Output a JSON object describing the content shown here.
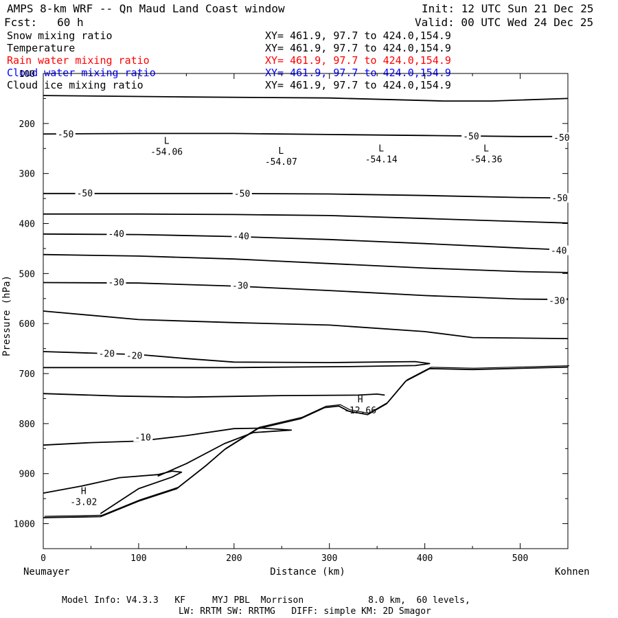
{
  "header": {
    "title": "AMPS 8-km WRF -- Qn Maud Land Coast window",
    "init": "Init: 12 UTC Sun 21 Dec 25",
    "fcst": "Fcst:   60 h",
    "valid": "Valid: 00 UTC Wed 24 Dec 25"
  },
  "fields": [
    {
      "name": "Snow mixing ratio",
      "xy": "XY= 461.9, 97.7 to 424.0,154.9",
      "color": "#000000"
    },
    {
      "name": "Temperature",
      "xy": "XY= 461.9, 97.7 to 424.0,154.9",
      "color": "#000000"
    },
    {
      "name": "Rain water mixing ratio",
      "xy": "XY= 461.9, 97.7 to 424.0,154.9",
      "color": "#ff0000"
    },
    {
      "name": "Cloud water mixing ratio",
      "xy": "XY= 461.9, 97.7 to 424.0,154.9",
      "color": "#0000ff"
    },
    {
      "name": "Cloud ice mixing ratio",
      "xy": "XY= 461.9, 97.7 to 424.0,154.9",
      "color": "#000000"
    }
  ],
  "footer": {
    "line1": "Model Info: V4.3.3   KF     MYJ PBL  Morrison            8.0 km,  60 levels,",
    "line2": "LW: RRTM SW: RRTMG   DIFF: simple KM: 2D Smagor"
  },
  "chart_data": {
    "type": "line",
    "title": "AMPS 8-km WRF -- Qn Maud Land Coast window",
    "xlabel": "Distance (km)",
    "ylabel": "Pressure (hPa)",
    "xlim": [
      0,
      550
    ],
    "ylim": [
      1050,
      100
    ],
    "x_ticks": [
      0,
      100,
      200,
      300,
      400,
      500
    ],
    "y_ticks": [
      100,
      200,
      300,
      400,
      500,
      600,
      700,
      800,
      900,
      1000
    ],
    "x_end_labels": {
      "left": "Neumayer",
      "right": "Kohnen"
    },
    "series": [
      {
        "name": "contour -60",
        "points": [
          [
            0,
            144
          ],
          [
            150,
            147
          ],
          [
            300,
            149
          ],
          [
            420,
            155
          ],
          [
            470,
            155
          ],
          [
            550,
            150
          ]
        ]
      },
      {
        "name": "contour -50 (upper)",
        "points": [
          [
            0,
            221
          ],
          [
            100,
            220
          ],
          [
            200,
            220
          ],
          [
            300,
            222
          ],
          [
            400,
            224
          ],
          [
            500,
            226
          ],
          [
            550,
            226
          ]
        ]
      },
      {
        "name": "contour -50 (lower)",
        "points": [
          [
            0,
            340
          ],
          [
            100,
            340
          ],
          [
            200,
            340
          ],
          [
            300,
            341
          ],
          [
            400,
            344
          ],
          [
            500,
            348
          ],
          [
            550,
            349
          ]
        ]
      },
      {
        "name": "contour -45",
        "points": [
          [
            0,
            381
          ],
          [
            100,
            381
          ],
          [
            200,
            382
          ],
          [
            300,
            384
          ],
          [
            400,
            390
          ],
          [
            500,
            396
          ],
          [
            550,
            399
          ]
        ]
      },
      {
        "name": "contour -40",
        "points": [
          [
            0,
            421
          ],
          [
            100,
            422
          ],
          [
            200,
            426
          ],
          [
            300,
            432
          ],
          [
            400,
            440
          ],
          [
            500,
            449
          ],
          [
            550,
            453
          ]
        ]
      },
      {
        "name": "contour -35",
        "points": [
          [
            0,
            462
          ],
          [
            100,
            465
          ],
          [
            200,
            471
          ],
          [
            300,
            480
          ],
          [
            400,
            489
          ],
          [
            500,
            496
          ],
          [
            550,
            498
          ]
        ]
      },
      {
        "name": "contour -30",
        "points": [
          [
            0,
            518
          ],
          [
            100,
            519
          ],
          [
            200,
            525
          ],
          [
            300,
            534
          ],
          [
            400,
            544
          ],
          [
            500,
            551
          ],
          [
            550,
            552
          ]
        ]
      },
      {
        "name": "contour -25",
        "points": [
          [
            0,
            575
          ],
          [
            100,
            592
          ],
          [
            200,
            598
          ],
          [
            300,
            603
          ],
          [
            400,
            616
          ],
          [
            450,
            628
          ],
          [
            550,
            630
          ]
        ]
      },
      {
        "name": "contour -20",
        "points": [
          [
            0,
            656
          ],
          [
            100,
            662
          ],
          [
            150,
            670
          ],
          [
            200,
            677
          ],
          [
            300,
            678
          ],
          [
            390,
            676
          ],
          [
            405,
            680
          ],
          [
            390,
            684
          ],
          [
            320,
            686
          ],
          [
            200,
            688
          ],
          [
            0,
            688
          ]
        ]
      },
      {
        "name": "contour -15",
        "points": [
          [
            0,
            740
          ],
          [
            80,
            745
          ],
          [
            150,
            747
          ],
          [
            250,
            744
          ],
          [
            330,
            743
          ],
          [
            350,
            741
          ],
          [
            358,
            743
          ]
        ]
      },
      {
        "name": "contour -10",
        "points": [
          [
            0,
            843
          ],
          [
            50,
            838
          ],
          [
            100,
            835
          ],
          [
            150,
            824
          ],
          [
            200,
            810
          ],
          [
            230,
            809
          ],
          [
            260,
            813
          ],
          [
            220,
            818
          ],
          [
            190,
            840
          ],
          [
            150,
            880
          ],
          [
            120,
            905
          ]
        ]
      },
      {
        "name": "contour -5",
        "points": [
          [
            0,
            939
          ],
          [
            40,
            925
          ],
          [
            80,
            908
          ],
          [
            120,
            902
          ],
          [
            135,
            895
          ],
          [
            145,
            897
          ],
          [
            135,
            907
          ],
          [
            100,
            930
          ],
          [
            60,
            980
          ]
        ]
      },
      {
        "name": "terrain",
        "points": [
          [
            0,
            988
          ],
          [
            60,
            986
          ],
          [
            100,
            955
          ],
          [
            140,
            930
          ],
          [
            170,
            885
          ],
          [
            190,
            852
          ],
          [
            225,
            810
          ],
          [
            270,
            790
          ],
          [
            295,
            768
          ],
          [
            310,
            765
          ],
          [
            320,
            775
          ],
          [
            340,
            782
          ],
          [
            360,
            760
          ],
          [
            380,
            715
          ],
          [
            405,
            690
          ],
          [
            450,
            692
          ],
          [
            550,
            687
          ]
        ]
      }
    ],
    "annotations": [
      {
        "text": "L",
        "value": "-54.06",
        "x": 125,
        "p": 260
      },
      {
        "text": "L",
        "value": "-54.07",
        "x": 245,
        "p": 280
      },
      {
        "text": "L",
        "value": "-54.14",
        "x": 350,
        "p": 275
      },
      {
        "text": "L",
        "value": "-54.36",
        "x": 460,
        "p": 275
      },
      {
        "text": "H",
        "value": "-12.66",
        "x": 328,
        "p": 777
      },
      {
        "text": "H",
        "value": "-3.02",
        "x": 38,
        "p": 960
      }
    ],
    "contour_labels": [
      {
        "text": "-50",
        "x": 15,
        "p": 222
      },
      {
        "text": "-50",
        "x": 440,
        "p": 226
      },
      {
        "text": "-50",
        "x": 535,
        "p": 229
      },
      {
        "text": "-50",
        "x": 35,
        "p": 340
      },
      {
        "text": "-50",
        "x": 200,
        "p": 341
      },
      {
        "text": "-50",
        "x": 533,
        "p": 350
      },
      {
        "text": "-40",
        "x": 68,
        "p": 421
      },
      {
        "text": "-40",
        "x": 199,
        "p": 426
      },
      {
        "text": "-40",
        "x": 532,
        "p": 455
      },
      {
        "text": "-30",
        "x": 68,
        "p": 518
      },
      {
        "text": "-30",
        "x": 198,
        "p": 525
      },
      {
        "text": "-30",
        "x": 530,
        "p": 555
      },
      {
        "text": "-20",
        "x": 58,
        "p": 661
      },
      {
        "text": "-20",
        "x": 87,
        "p": 665
      },
      {
        "text": "-10",
        "x": 96,
        "p": 828
      }
    ]
  }
}
